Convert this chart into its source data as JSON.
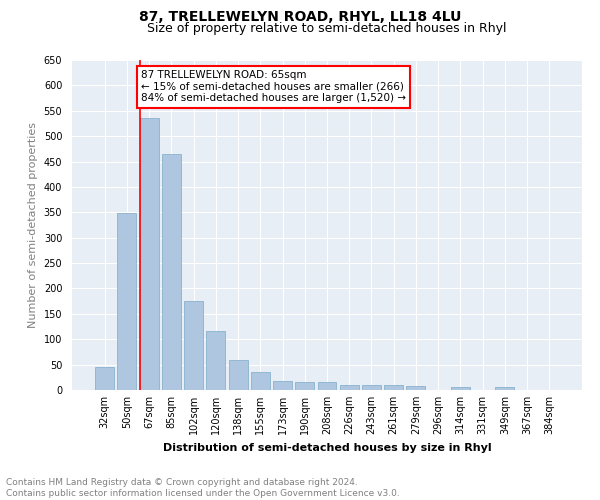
{
  "title": "87, TRELLEWELYN ROAD, RHYL, LL18 4LU",
  "subtitle": "Size of property relative to semi-detached houses in Rhyl",
  "xlabel": "Distribution of semi-detached houses by size in Rhyl",
  "ylabel": "Number of semi-detached properties",
  "categories": [
    "32sqm",
    "50sqm",
    "67sqm",
    "85sqm",
    "102sqm",
    "120sqm",
    "138sqm",
    "155sqm",
    "173sqm",
    "190sqm",
    "208sqm",
    "226sqm",
    "243sqm",
    "261sqm",
    "279sqm",
    "296sqm",
    "314sqm",
    "331sqm",
    "349sqm",
    "367sqm",
    "384sqm"
  ],
  "values": [
    46,
    348,
    536,
    465,
    175,
    116,
    59,
    35,
    18,
    15,
    15,
    10,
    9,
    9,
    8,
    0,
    5,
    0,
    6,
    0,
    0
  ],
  "bar_color": "#aec6df",
  "bar_edge_color": "#7aaac8",
  "red_line_x": 2,
  "annotation_text": "87 TRELLEWELYN ROAD: 65sqm\n← 15% of semi-detached houses are smaller (266)\n84% of semi-detached houses are larger (1,520) →",
  "annotation_box_color": "white",
  "annotation_box_edge_color": "red",
  "ylim": [
    0,
    650
  ],
  "yticks": [
    0,
    50,
    100,
    150,
    200,
    250,
    300,
    350,
    400,
    450,
    500,
    550,
    600,
    650
  ],
  "background_color": "#e8eef5",
  "grid_color": "white",
  "footer_line1": "Contains HM Land Registry data © Crown copyright and database right 2024.",
  "footer_line2": "Contains public sector information licensed under the Open Government Licence v3.0.",
  "title_fontsize": 10,
  "subtitle_fontsize": 9,
  "axis_label_fontsize": 8,
  "tick_fontsize": 7,
  "annotation_fontsize": 7.5,
  "footer_fontsize": 6.5
}
